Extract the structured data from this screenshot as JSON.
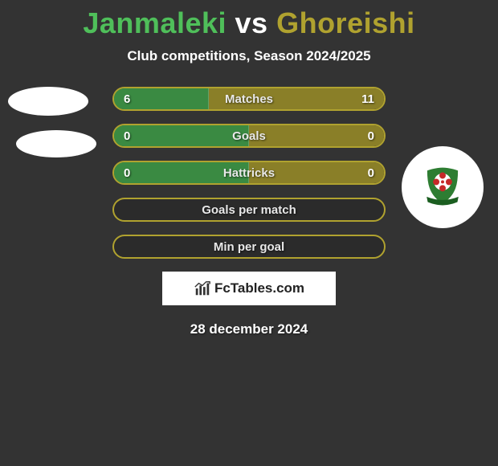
{
  "title_player1": "Janmaleki",
  "title_vs": "vs",
  "title_player2": "Ghoreishi",
  "title_color_player1": "#4fbf5a",
  "title_color_vs": "#ffffff",
  "title_color_player2": "#b0a22f",
  "subtitle": "Club competitions, Season 2024/2025",
  "colors": {
    "left_border": "#4fbf5a",
    "left_fill": "#3a8a42",
    "right_border": "#b0a22f",
    "right_fill": "#8a7f28",
    "background": "#333333"
  },
  "bars": [
    {
      "label": "Matches",
      "left": "6",
      "right": "11",
      "left_pct": 35,
      "right_pct": 65
    },
    {
      "label": "Goals",
      "left": "0",
      "right": "0",
      "left_pct": 50,
      "right_pct": 50
    },
    {
      "label": "Hattricks",
      "left": "0",
      "right": "0",
      "left_pct": 50,
      "right_pct": 50
    },
    {
      "label": "Goals per match",
      "left": "",
      "right": "",
      "left_pct": 0,
      "right_pct": 0
    },
    {
      "label": "Min per goal",
      "left": "",
      "right": "",
      "left_pct": 0,
      "right_pct": 0
    }
  ],
  "brand": "FcTables.com",
  "date": "28 december 2024",
  "badge_colors": {
    "shield": "#2e7d32",
    "flower": "#c62828",
    "center": "#ffffff",
    "ribbon": "#1b5e20"
  }
}
